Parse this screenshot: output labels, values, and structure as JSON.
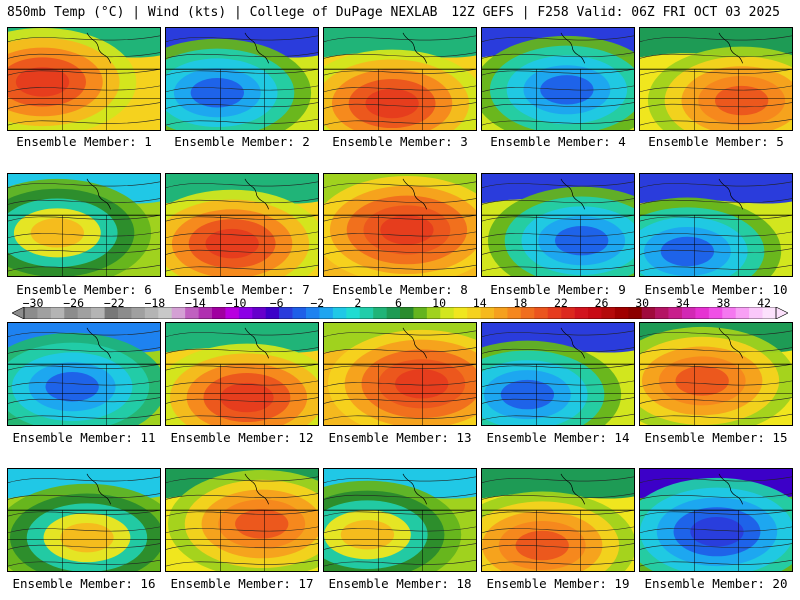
{
  "header": {
    "left": "850mb Temp (°C) | Wind (kts) | College of DuPage NEXLAB",
    "right": "12Z GEFS | F258 Valid: 06Z FRI OCT 03 2025"
  },
  "members": [
    {
      "label": "Ensemble Member: 1",
      "scheme": "warm"
    },
    {
      "label": "Ensemble Member: 2",
      "scheme": "cold"
    },
    {
      "label": "Ensemble Member: 3",
      "scheme": "warm"
    },
    {
      "label": "Ensemble Member: 4",
      "scheme": "cold"
    },
    {
      "label": "Ensemble Member: 5",
      "scheme": "mild"
    },
    {
      "label": "Ensemble Member: 6",
      "scheme": "cool"
    },
    {
      "label": "Ensemble Member: 7",
      "scheme": "warm"
    },
    {
      "label": "Ensemble Member: 8",
      "scheme": "hot"
    },
    {
      "label": "Ensemble Member: 9",
      "scheme": "cold"
    },
    {
      "label": "Ensemble Member: 10",
      "scheme": "cold"
    },
    {
      "label": "Ensemble Member: 11",
      "scheme": "low"
    },
    {
      "label": "Ensemble Member: 12",
      "scheme": "warm"
    },
    {
      "label": "Ensemble Member: 13",
      "scheme": "hot"
    },
    {
      "label": "Ensemble Member: 14",
      "scheme": "cold"
    },
    {
      "label": "Ensemble Member: 15",
      "scheme": "mild"
    },
    {
      "label": "Ensemble Member: 16",
      "scheme": "cool"
    },
    {
      "label": "Ensemble Member: 17",
      "scheme": "mild"
    },
    {
      "label": "Ensemble Member: 18",
      "scheme": "cool"
    },
    {
      "label": "Ensemble Member: 19",
      "scheme": "mild"
    },
    {
      "label": "Ensemble Member: 20",
      "scheme": "vcold"
    }
  ],
  "colorbar": {
    "ticks": [
      "−30",
      "−26",
      "−22",
      "−18",
      "−14",
      "−10",
      "−6",
      "−2",
      "2",
      "6",
      "10",
      "14",
      "18",
      "22",
      "26",
      "30",
      "34",
      "38",
      "42"
    ],
    "colors": [
      "#8c8c8c",
      "#a0a0a0",
      "#b4b4b4",
      "#8c8c8c",
      "#a0a0a0",
      "#b4b4b4",
      "#787878",
      "#8c8c8c",
      "#a0a0a0",
      "#b4b4b4",
      "#c8c8c8",
      "#d4a0d4",
      "#c060c0",
      "#b030b0",
      "#a000a0",
      "#b800e0",
      "#8c00e6",
      "#6600cc",
      "#3c00c8",
      "#2a3cdc",
      "#1f5fe8",
      "#1e82f0",
      "#1ea5f0",
      "#20c8e6",
      "#20dcd2",
      "#22cdaa",
      "#20b478",
      "#1e9b55",
      "#2a8c2d",
      "#64b41e",
      "#a0d21e",
      "#d2e61e",
      "#f0e61e",
      "#f5d21e",
      "#f5b91e",
      "#f5a01e",
      "#f5871e",
      "#f06e1e",
      "#eb551e",
      "#e63c1e",
      "#dc281e",
      "#d2141e",
      "#c80a14",
      "#b40a0a",
      "#a00000",
      "#8c0000",
      "#a00a3c",
      "#b41464",
      "#c81e8c",
      "#d228b4",
      "#e632d2",
      "#f050e6",
      "#f578f0",
      "#f8a0f5",
      "#fac8fa",
      "#fce1fc"
    ]
  }
}
